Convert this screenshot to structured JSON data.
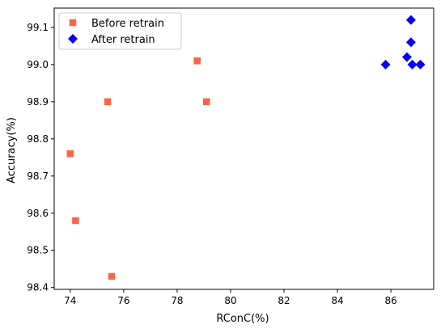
{
  "chart_data": {
    "type": "scatter",
    "title": "",
    "xlabel": "RConC(%)",
    "ylabel": "Accuracy(%)",
    "xlim": [
      73.4,
      87.6
    ],
    "ylim": [
      98.395,
      99.152
    ],
    "xticks": [
      74,
      76,
      78,
      80,
      82,
      84,
      86
    ],
    "yticks": [
      98.4,
      98.5,
      98.6,
      98.7,
      98.8,
      98.9,
      99.0,
      99.1
    ],
    "xtick_labels": [
      "74",
      "76",
      "78",
      "80",
      "82",
      "84",
      "86"
    ],
    "ytick_labels": [
      "98.4",
      "98.5",
      "98.6",
      "98.7",
      "98.8",
      "98.9",
      "99.0",
      "99.1"
    ],
    "grid": false,
    "legend_position": "top-left",
    "series": [
      {
        "name": "Before retrain",
        "marker": "square",
        "color": "#FF6347",
        "points": [
          {
            "x": 74.0,
            "y": 98.76
          },
          {
            "x": 74.2,
            "y": 98.58
          },
          {
            "x": 75.4,
            "y": 98.9
          },
          {
            "x": 75.55,
            "y": 98.43
          },
          {
            "x": 78.75,
            "y": 99.01
          },
          {
            "x": 79.1,
            "y": 98.9
          }
        ]
      },
      {
        "name": "After retrain",
        "marker": "diamond",
        "color": "#0000FF",
        "points": [
          {
            "x": 85.8,
            "y": 99.0
          },
          {
            "x": 86.6,
            "y": 99.02
          },
          {
            "x": 86.75,
            "y": 99.12
          },
          {
            "x": 86.75,
            "y": 99.06
          },
          {
            "x": 86.8,
            "y": 99.0
          },
          {
            "x": 87.1,
            "y": 99.0
          }
        ]
      }
    ]
  }
}
